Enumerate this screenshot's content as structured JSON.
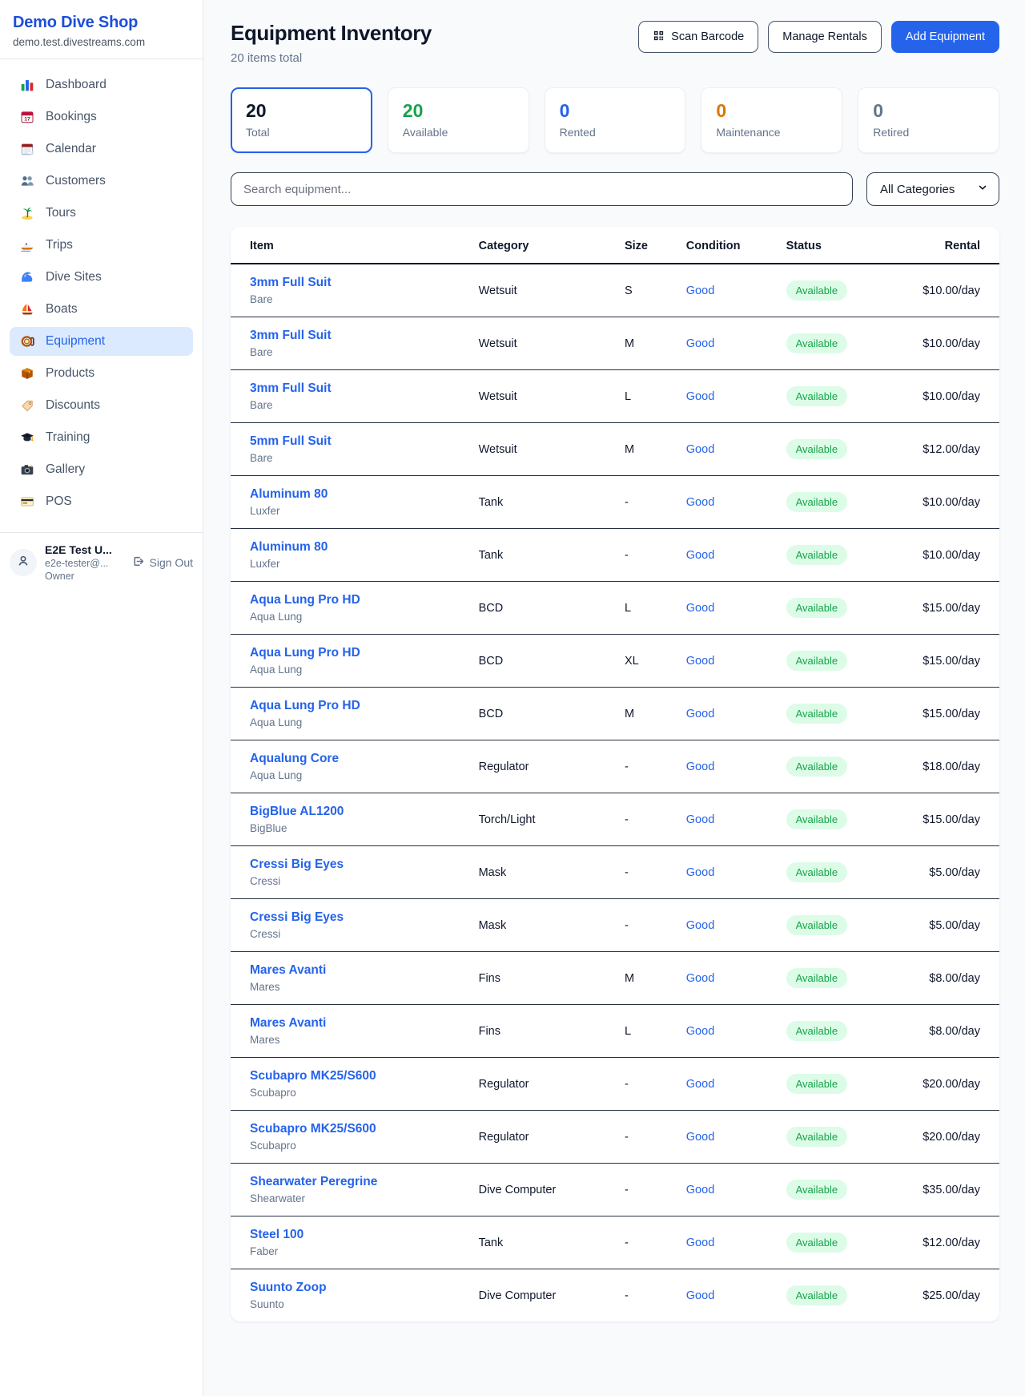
{
  "sidebar": {
    "brand": {
      "name": "Demo Dive Shop",
      "domain": "demo.test.divestreams.com"
    },
    "items": [
      {
        "icon": "bar-chart-icon",
        "label": "Dashboard",
        "active": false
      },
      {
        "icon": "calendar-date-icon",
        "label": "Bookings",
        "active": false
      },
      {
        "icon": "calendar-pad-icon",
        "label": "Calendar",
        "active": false
      },
      {
        "icon": "users-icon",
        "label": "Customers",
        "active": false
      },
      {
        "icon": "palm-island-icon",
        "label": "Tours",
        "active": false
      },
      {
        "icon": "speedboat-icon",
        "label": "Trips",
        "active": false
      },
      {
        "icon": "wave-icon",
        "label": "Dive Sites",
        "active": false
      },
      {
        "icon": "sailboat-icon",
        "label": "Boats",
        "active": false
      },
      {
        "icon": "dive-mask-icon",
        "label": "Equipment",
        "active": true
      },
      {
        "icon": "package-icon",
        "label": "Products",
        "active": false
      },
      {
        "icon": "tag-icon",
        "label": "Discounts",
        "active": false
      },
      {
        "icon": "graduation-cap-icon",
        "label": "Training",
        "active": false
      },
      {
        "icon": "camera-icon",
        "label": "Gallery",
        "active": false
      },
      {
        "icon": "credit-card-icon",
        "label": "POS",
        "active": false
      }
    ],
    "user": {
      "name": "E2E Test U...",
      "email": "e2e-tester@...",
      "role": "Owner",
      "sign_out_label": "Sign Out"
    }
  },
  "header": {
    "title": "Equipment Inventory",
    "subtitle": "20 items total",
    "scan_barcode_label": "Scan Barcode",
    "manage_rentals_label": "Manage Rentals",
    "add_equipment_label": "Add Equipment"
  },
  "stats": [
    {
      "value": "20",
      "label": "Total",
      "color": "#0f172a",
      "active": true
    },
    {
      "value": "20",
      "label": "Available",
      "color": "#16a34a",
      "active": false
    },
    {
      "value": "0",
      "label": "Rented",
      "color": "#2563eb",
      "active": false
    },
    {
      "value": "0",
      "label": "Maintenance",
      "color": "#d97706",
      "active": false
    },
    {
      "value": "0",
      "label": "Retired",
      "color": "#64748b",
      "active": false
    }
  ],
  "filters": {
    "search_placeholder": "Search equipment...",
    "category_selected": "All Categories"
  },
  "table": {
    "columns": [
      "Item",
      "Category",
      "Size",
      "Condition",
      "Status",
      "Rental"
    ],
    "rows": [
      {
        "item": "3mm Full Suit",
        "brand": "Bare",
        "category": "Wetsuit",
        "size": "S",
        "condition": "Good",
        "status": "Available",
        "rental": "$10.00/day"
      },
      {
        "item": "3mm Full Suit",
        "brand": "Bare",
        "category": "Wetsuit",
        "size": "M",
        "condition": "Good",
        "status": "Available",
        "rental": "$10.00/day"
      },
      {
        "item": "3mm Full Suit",
        "brand": "Bare",
        "category": "Wetsuit",
        "size": "L",
        "condition": "Good",
        "status": "Available",
        "rental": "$10.00/day"
      },
      {
        "item": "5mm Full Suit",
        "brand": "Bare",
        "category": "Wetsuit",
        "size": "M",
        "condition": "Good",
        "status": "Available",
        "rental": "$12.00/day"
      },
      {
        "item": "Aluminum 80",
        "brand": "Luxfer",
        "category": "Tank",
        "size": "-",
        "condition": "Good",
        "status": "Available",
        "rental": "$10.00/day"
      },
      {
        "item": "Aluminum 80",
        "brand": "Luxfer",
        "category": "Tank",
        "size": "-",
        "condition": "Good",
        "status": "Available",
        "rental": "$10.00/day"
      },
      {
        "item": "Aqua Lung Pro HD",
        "brand": "Aqua Lung",
        "category": "BCD",
        "size": "L",
        "condition": "Good",
        "status": "Available",
        "rental": "$15.00/day"
      },
      {
        "item": "Aqua Lung Pro HD",
        "brand": "Aqua Lung",
        "category": "BCD",
        "size": "XL",
        "condition": "Good",
        "status": "Available",
        "rental": "$15.00/day"
      },
      {
        "item": "Aqua Lung Pro HD",
        "brand": "Aqua Lung",
        "category": "BCD",
        "size": "M",
        "condition": "Good",
        "status": "Available",
        "rental": "$15.00/day"
      },
      {
        "item": "Aqualung Core",
        "brand": "Aqua Lung",
        "category": "Regulator",
        "size": "-",
        "condition": "Good",
        "status": "Available",
        "rental": "$18.00/day"
      },
      {
        "item": "BigBlue AL1200",
        "brand": "BigBlue",
        "category": "Torch/Light",
        "size": "-",
        "condition": "Good",
        "status": "Available",
        "rental": "$15.00/day"
      },
      {
        "item": "Cressi Big Eyes",
        "brand": "Cressi",
        "category": "Mask",
        "size": "-",
        "condition": "Good",
        "status": "Available",
        "rental": "$5.00/day"
      },
      {
        "item": "Cressi Big Eyes",
        "brand": "Cressi",
        "category": "Mask",
        "size": "-",
        "condition": "Good",
        "status": "Available",
        "rental": "$5.00/day"
      },
      {
        "item": "Mares Avanti",
        "brand": "Mares",
        "category": "Fins",
        "size": "M",
        "condition": "Good",
        "status": "Available",
        "rental": "$8.00/day"
      },
      {
        "item": "Mares Avanti",
        "brand": "Mares",
        "category": "Fins",
        "size": "L",
        "condition": "Good",
        "status": "Available",
        "rental": "$8.00/day"
      },
      {
        "item": "Scubapro MK25/S600",
        "brand": "Scubapro",
        "category": "Regulator",
        "size": "-",
        "condition": "Good",
        "status": "Available",
        "rental": "$20.00/day"
      },
      {
        "item": "Scubapro MK25/S600",
        "brand": "Scubapro",
        "category": "Regulator",
        "size": "-",
        "condition": "Good",
        "status": "Available",
        "rental": "$20.00/day"
      },
      {
        "item": "Shearwater Peregrine",
        "brand": "Shearwater",
        "category": "Dive Computer",
        "size": "-",
        "condition": "Good",
        "status": "Available",
        "rental": "$35.00/day"
      },
      {
        "item": "Steel 100",
        "brand": "Faber",
        "category": "Tank",
        "size": "-",
        "condition": "Good",
        "status": "Available",
        "rental": "$12.00/day"
      },
      {
        "item": "Suunto Zoop",
        "brand": "Suunto",
        "category": "Dive Computer",
        "size": "-",
        "condition": "Good",
        "status": "Available",
        "rental": "$25.00/day"
      }
    ]
  }
}
